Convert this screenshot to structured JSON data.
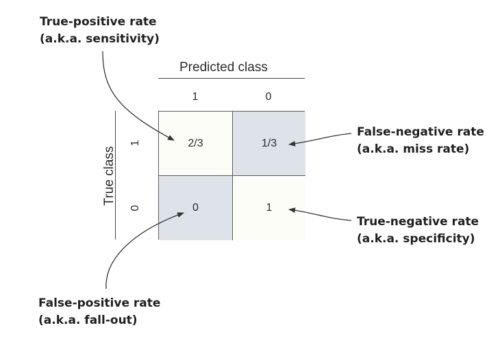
{
  "callouts": {
    "tpr": {
      "title": "True-positive rate",
      "alias": "(a.k.a. sensitivity)"
    },
    "fnr": {
      "title": "False-negative rate",
      "alias": "(a.k.a. miss rate)"
    },
    "tnr": {
      "title": "True-negative rate",
      "alias": "(a.k.a. specificity)"
    },
    "fpr": {
      "title": "False-positive rate",
      "alias": "(a.k.a. fall-out)"
    }
  },
  "axes": {
    "predicted_title": "Predicted class",
    "true_title": "True class",
    "predicted_ticks": [
      "1",
      "0"
    ],
    "true_ticks": [
      "1",
      "0"
    ]
  },
  "matrix": {
    "cells": [
      [
        "2/3",
        "1/3"
      ],
      [
        "0",
        "1"
      ]
    ]
  },
  "colors": {
    "diagonal_cell": "#fdfdf8",
    "off_diagonal_cell": "#dde3e8",
    "arrow": "#333333"
  }
}
